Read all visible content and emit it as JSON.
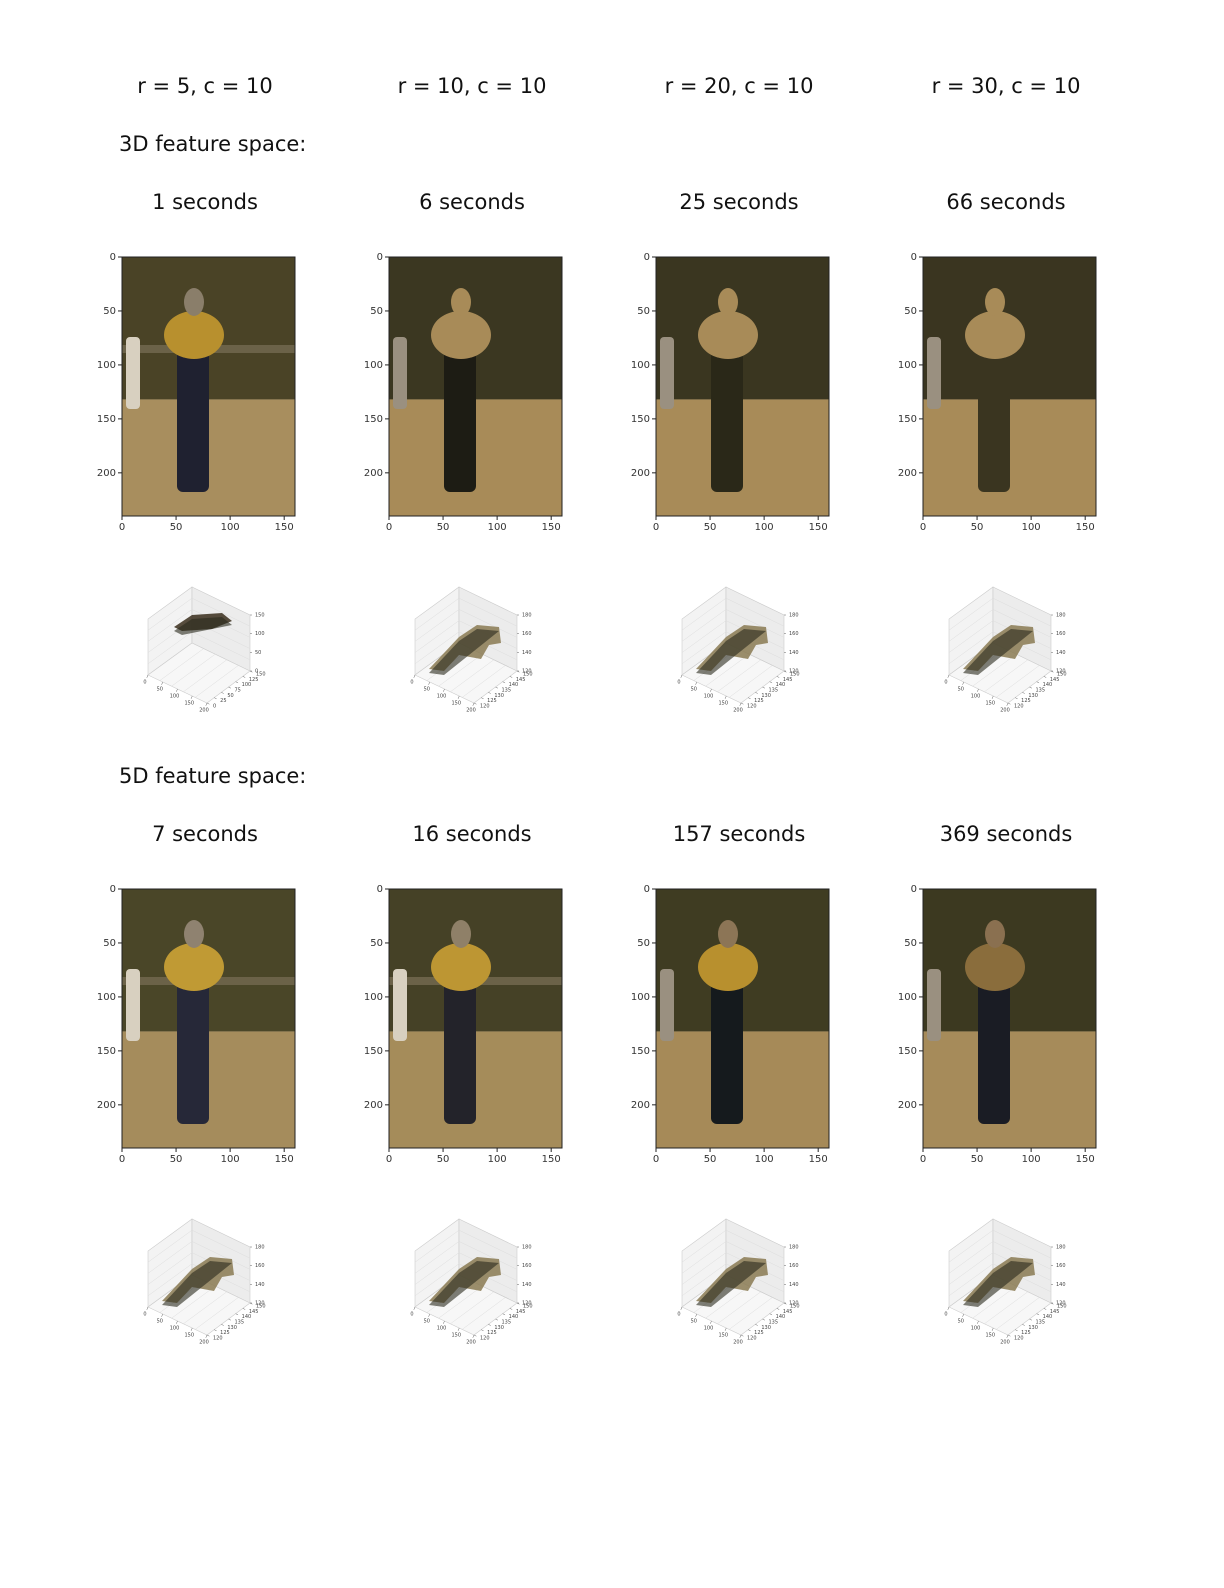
{
  "columns": [
    "r = 5, c = 10",
    "r = 10, c = 10",
    "r = 20, c = 10",
    "r = 30, c = 10"
  ],
  "image_axes": {
    "x_ticks": [
      0,
      50,
      100,
      150
    ],
    "y_ticks": [
      0,
      50,
      100,
      150,
      200
    ]
  },
  "sections": [
    {
      "label": "3D feature space:",
      "panels": [
        {
          "time": "1 seconds",
          "plot3d": {
            "x_ticks": [
              0,
              50,
              100,
              150,
              200
            ],
            "y_ticks": [
              0,
              25,
              50,
              75,
              100,
              125,
              150
            ],
            "z_ticks": [
              0,
              50,
              100,
              150
            ]
          }
        },
        {
          "time": "6 seconds",
          "plot3d": {
            "x_ticks": [
              0,
              50,
              100,
              150,
              200
            ],
            "y_ticks": [
              120,
              125,
              130,
              135,
              140,
              145,
              150
            ],
            "z_ticks": [
              120,
              140,
              160,
              180
            ]
          }
        },
        {
          "time": "25 seconds",
          "plot3d": {
            "x_ticks": [
              0,
              50,
              100,
              150,
              200
            ],
            "y_ticks": [
              120,
              125,
              130,
              135,
              140,
              145,
              150
            ],
            "z_ticks": [
              120,
              140,
              160,
              180
            ]
          }
        },
        {
          "time": "66 seconds",
          "plot3d": {
            "x_ticks": [
              0,
              50,
              100,
              150,
              200
            ],
            "y_ticks": [
              120,
              125,
              130,
              135,
              140,
              145,
              150
            ],
            "z_ticks": [
              120,
              140,
              160,
              180
            ]
          }
        }
      ]
    },
    {
      "label": "5D feature space:",
      "panels": [
        {
          "time": "7 seconds",
          "plot3d": {
            "x_ticks": [
              0,
              50,
              100,
              150,
              200
            ],
            "y_ticks": [
              120,
              125,
              130,
              135,
              140,
              145,
              150
            ],
            "z_ticks": [
              120,
              140,
              160,
              180
            ]
          }
        },
        {
          "time": "16 seconds",
          "plot3d": {
            "x_ticks": [
              0,
              50,
              100,
              150,
              200
            ],
            "y_ticks": [
              120,
              125,
              130,
              135,
              140,
              145,
              150
            ],
            "z_ticks": [
              120,
              140,
              160,
              180
            ]
          }
        },
        {
          "time": "157 seconds",
          "plot3d": {
            "x_ticks": [
              0,
              50,
              100,
              150,
              200
            ],
            "y_ticks": [
              120,
              125,
              130,
              135,
              140,
              145,
              150
            ],
            "z_ticks": [
              120,
              140,
              160,
              180
            ]
          }
        },
        {
          "time": "369 seconds",
          "plot3d": {
            "x_ticks": [
              0,
              50,
              100,
              150,
              200
            ],
            "y_ticks": [
              120,
              125,
              130,
              135,
              140,
              145,
              150
            ],
            "z_ticks": [
              120,
              140,
              160,
              180
            ]
          }
        }
      ]
    }
  ]
}
